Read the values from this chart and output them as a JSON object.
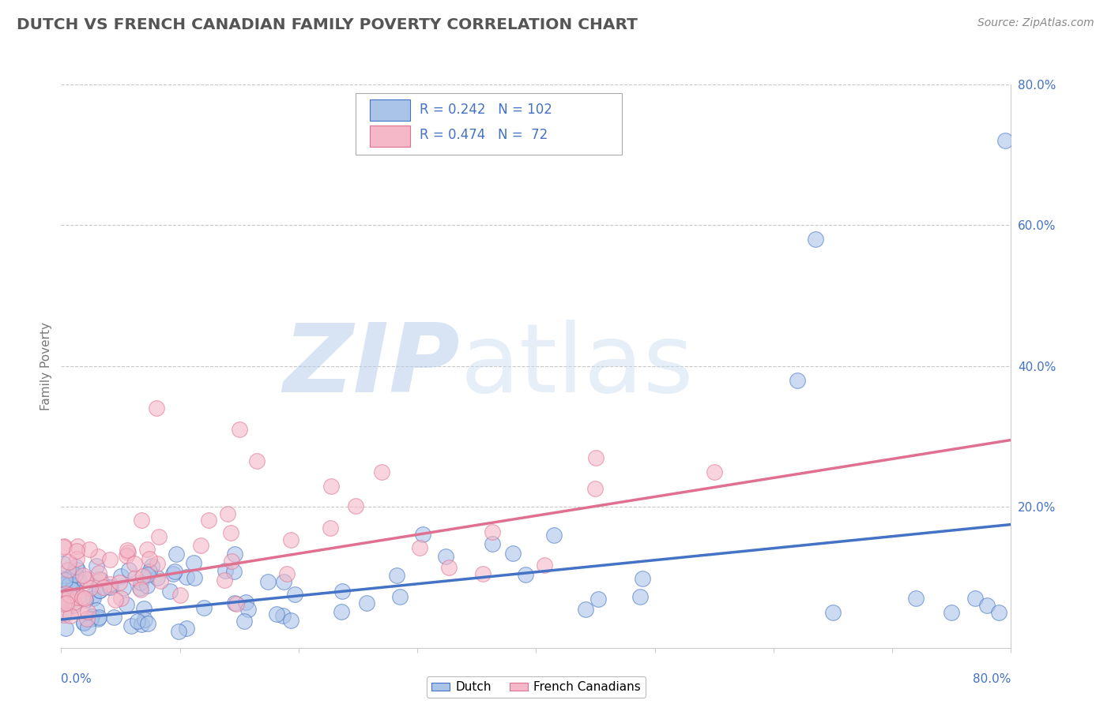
{
  "title": "DUTCH VS FRENCH CANADIAN FAMILY POVERTY CORRELATION CHART",
  "source": "Source: ZipAtlas.com",
  "ylabel": "Family Poverty",
  "xlim": [
    0.0,
    0.8
  ],
  "ylim": [
    0.0,
    0.8
  ],
  "dutch_R": 0.242,
  "dutch_N": 102,
  "french_R": 0.474,
  "french_N": 72,
  "dutch_color": "#aac4e8",
  "french_color": "#f4b8c8",
  "dutch_line_color": "#4472c4",
  "french_line_color": "#e07090",
  "watermark_zip": "ZIP",
  "watermark_atlas": "atlas",
  "background_color": "#ffffff",
  "grid_color": "#c8c8c8",
  "legend_text_color": "#4472c4",
  "title_color": "#555555",
  "source_color": "#888888",
  "ytick_color": "#4472c4",
  "xtick_color": "#4472c4",
  "dutch_line_start_y": 0.04,
  "dutch_line_end_y": 0.175,
  "french_line_start_y": 0.08,
  "french_line_end_y": 0.295
}
